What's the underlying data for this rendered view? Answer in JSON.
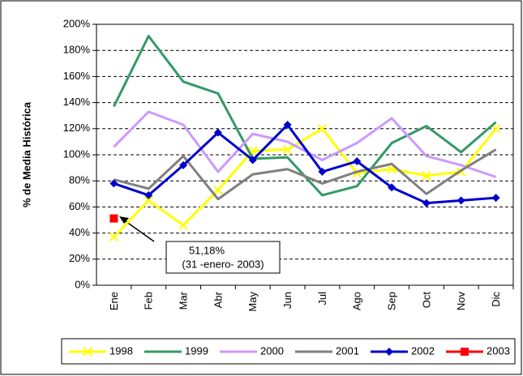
{
  "chart_data": {
    "type": "line",
    "y_label": "% de Media Histórica",
    "categories": [
      "Ene",
      "Feb",
      "Mar",
      "Abr",
      "May",
      "Jun",
      "Jul",
      "Ago",
      "Sep",
      "Oct",
      "Nov",
      "Dic"
    ],
    "ylim": [
      0,
      200
    ],
    "yticks": [
      {
        "value": 0,
        "label": "0%"
      },
      {
        "value": 20,
        "label": "20%"
      },
      {
        "value": 40,
        "label": "40%"
      },
      {
        "value": 60,
        "label": "60%"
      },
      {
        "value": 80,
        "label": "80%"
      },
      {
        "value": 100,
        "label": "100%"
      },
      {
        "value": 120,
        "label": "120%"
      },
      {
        "value": 140,
        "label": "140%"
      },
      {
        "value": 160,
        "label": "160%"
      },
      {
        "value": 180,
        "label": "180%"
      },
      {
        "value": 200,
        "label": "200%"
      }
    ],
    "grid": true,
    "legend": "bottom",
    "series": [
      {
        "name": "1998",
        "color": "#ffff00",
        "marker": "x",
        "values": [
          37,
          65,
          46,
          73,
          103,
          104,
          120,
          86,
          89,
          84,
          87,
          120
        ]
      },
      {
        "name": "1999",
        "color": "#339966",
        "marker": "none",
        "values": [
          137,
          191,
          156,
          147,
          97,
          98,
          69,
          76,
          109,
          122,
          102,
          125
        ]
      },
      {
        "name": "2000",
        "color": "#cc99ff",
        "marker": "none",
        "values": [
          106,
          133,
          123,
          87,
          116,
          110,
          96,
          109,
          128,
          99,
          92,
          83
        ]
      },
      {
        "name": "2001",
        "color": "#808080",
        "marker": "none",
        "values": [
          81,
          74,
          99,
          66,
          85,
          89,
          78,
          87,
          93,
          70,
          88,
          104
        ]
      },
      {
        "name": "2002",
        "color": "#0000cc",
        "marker": "diamond",
        "values": [
          78,
          69,
          92,
          117,
          96,
          123,
          87,
          95,
          75,
          63,
          65,
          67
        ]
      },
      {
        "name": "2003",
        "color": "#ff0000",
        "marker": "square",
        "values": [
          51.18,
          null,
          null,
          null,
          null,
          null,
          null,
          null,
          null,
          null,
          null,
          null
        ]
      }
    ],
    "annotations": [
      "51,18%",
      "(31 -enero- 2003)"
    ]
  }
}
